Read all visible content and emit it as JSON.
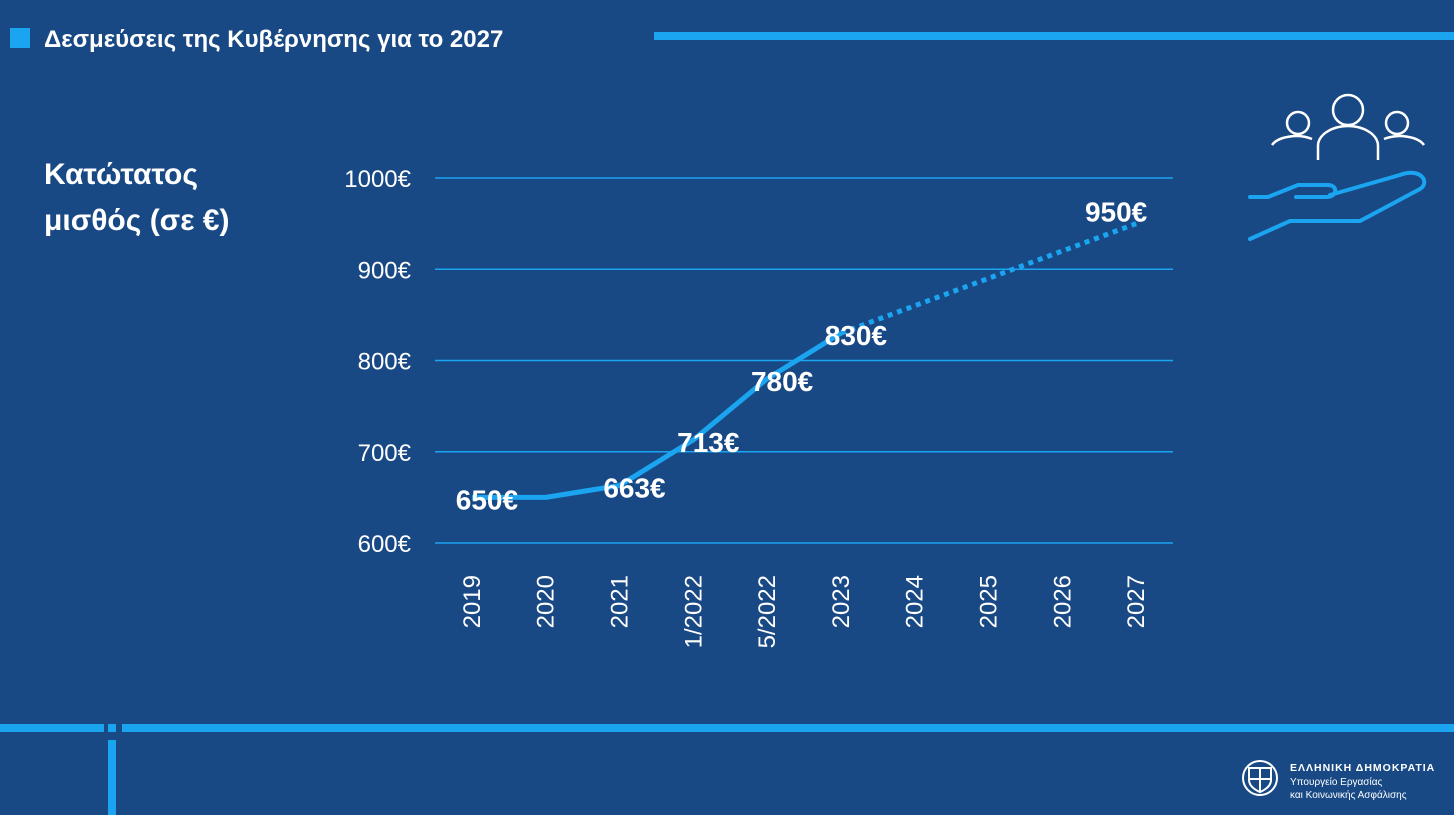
{
  "chart_data": {
    "type": "line",
    "title": "Δεσμεύσεις της Κυβέρνησης για το 2027",
    "y_label": "Κατώτατος μισθός (σε €)",
    "categories": [
      "2019",
      "2020",
      "2021",
      "1/2022",
      "5/2022",
      "2023",
      "2024",
      "2025",
      "2026",
      "2027"
    ],
    "series": [
      {
        "color": "#1ba4ef",
        "style": "solid",
        "values": [
          650,
          650,
          663,
          713,
          780,
          830,
          null,
          null,
          null,
          null
        ],
        "value_labels": [
          "650€",
          null,
          "663€",
          "713€",
          "780€",
          "830€",
          null,
          null,
          null,
          null
        ]
      },
      {
        "color": "#1ba4ef",
        "style": "dotted",
        "values": [
          null,
          null,
          null,
          null,
          null,
          830,
          860,
          890,
          920,
          950
        ],
        "value_labels": [
          null,
          null,
          null,
          null,
          null,
          null,
          null,
          null,
          null,
          "950€"
        ]
      }
    ],
    "ylim": [
      600,
      1000
    ],
    "yticks": [
      {
        "value": 600,
        "label": "600€"
      },
      {
        "value": 700,
        "label": "700€"
      },
      {
        "value": 800,
        "label": "800€"
      },
      {
        "value": 900,
        "label": "900€"
      },
      {
        "value": 1000,
        "label": "1000€"
      }
    ],
    "grid": true
  },
  "footer": {
    "country": "ΕΛΛΗΝΙΚΗ ΔΗΜΟΚΡΑΤΙΑ",
    "ministry_line1": "Υπουργείο Εργασίας",
    "ministry_line2": "και Κοινωνικής Ασφάλισης"
  }
}
